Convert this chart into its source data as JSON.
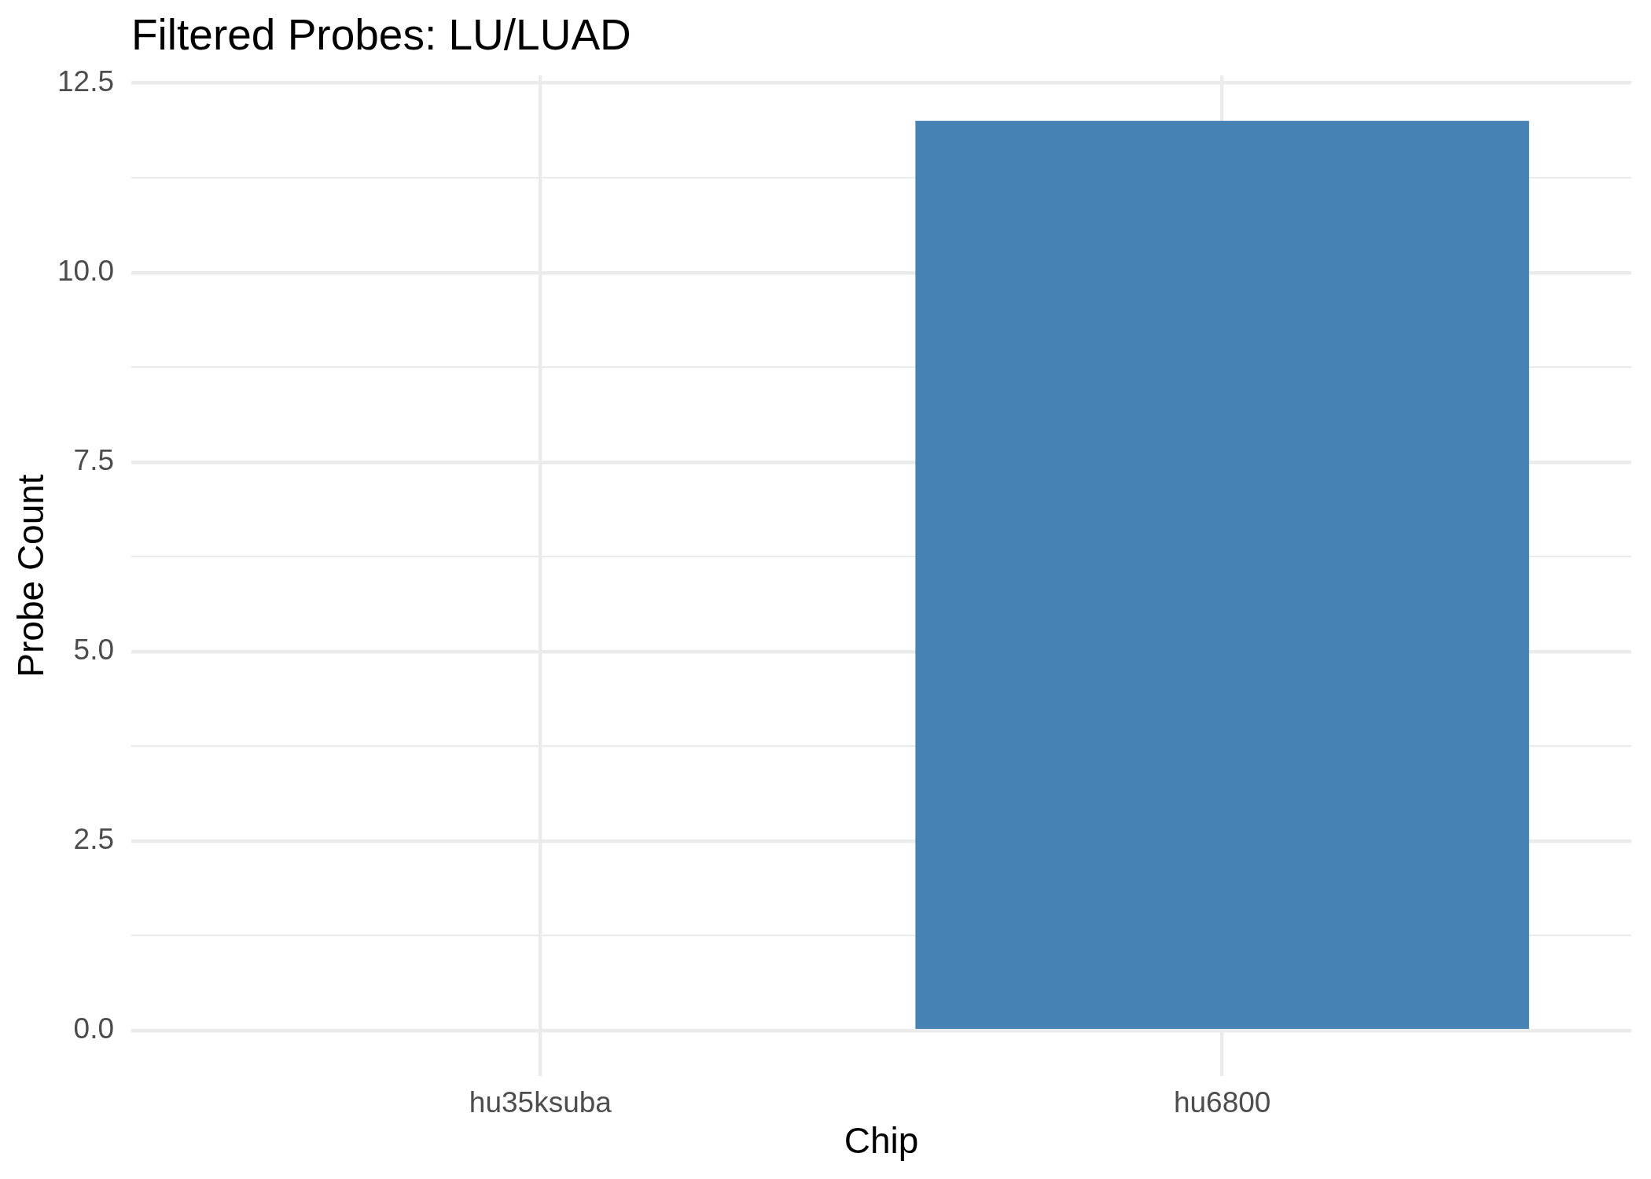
{
  "chart_data": {
    "type": "bar",
    "title": "Filtered Probes: LU/LUAD",
    "xlabel": "Chip",
    "ylabel": "Probe Count",
    "categories": [
      "hu35ksuba",
      "hu6800"
    ],
    "values": [
      0,
      12
    ],
    "color": "#4682b4",
    "ylim": [
      -0.6,
      12.6
    ],
    "yticks": [
      {
        "value": 0,
        "label": "0.0"
      },
      {
        "value": 1.25,
        "label": null
      },
      2.5,
      {
        "value": 3.75,
        "label": null
      },
      {
        "value": 5,
        "label": "5.0"
      },
      {
        "value": 6.25,
        "label": null
      },
      7.5,
      {
        "value": 8.75,
        "label": null
      },
      {
        "value": 10,
        "label": "10.0"
      },
      {
        "value": 11.25,
        "label": null
      },
      12.5
    ],
    "grid": true
  }
}
